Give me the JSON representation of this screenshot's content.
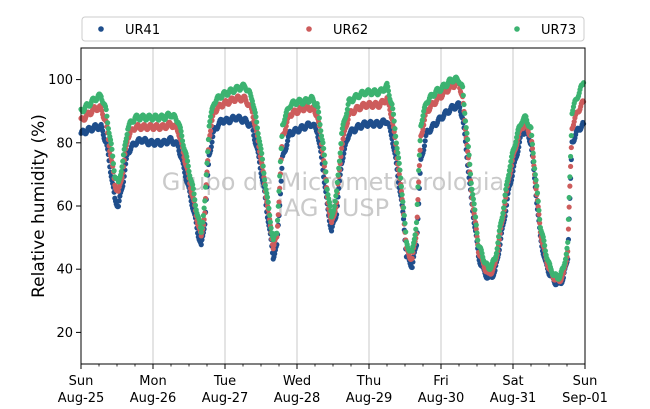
{
  "chart_data": {
    "type": "scatter",
    "ylabel": "Relative humidity (%)",
    "xlabel": "",
    "ylim": [
      10,
      110
    ],
    "yticks": [
      20,
      40,
      60,
      80,
      100
    ],
    "x_range_days": [
      0,
      7
    ],
    "xticks": [
      {
        "day": 0,
        "line1": "Sun",
        "line2": "Aug-25"
      },
      {
        "day": 1,
        "line1": "Mon",
        "line2": "Aug-26"
      },
      {
        "day": 2,
        "line1": "Tue",
        "line2": "Aug-27"
      },
      {
        "day": 3,
        "line1": "Wed",
        "line2": "Aug-28"
      },
      {
        "day": 4,
        "line1": "Thu",
        "line2": "Aug-29"
      },
      {
        "day": 5,
        "line1": "Fri",
        "line2": "Aug-30"
      },
      {
        "day": 6,
        "line1": "Sat",
        "line2": "Aug-31"
      },
      {
        "day": 7,
        "line1": "Sun",
        "line2": "Sep-01"
      }
    ],
    "grid": "vertical",
    "legend_position": "top",
    "watermark": [
      "Grupo de Micrometeorologia",
      "IAG / USP"
    ],
    "series": [
      {
        "name": "UR41",
        "color": "#1f4e8c",
        "points": [
          [
            0.0,
            83
          ],
          [
            0.1,
            84
          ],
          [
            0.2,
            85
          ],
          [
            0.28,
            85
          ],
          [
            0.35,
            80
          ],
          [
            0.42,
            70
          ],
          [
            0.47,
            62
          ],
          [
            0.52,
            60
          ],
          [
            0.58,
            67
          ],
          [
            0.65,
            77
          ],
          [
            0.75,
            80
          ],
          [
            0.85,
            81
          ],
          [
            0.95,
            80
          ],
          [
            1.05,
            80
          ],
          [
            1.15,
            80
          ],
          [
            1.25,
            81
          ],
          [
            1.35,
            79
          ],
          [
            1.45,
            70
          ],
          [
            1.55,
            60
          ],
          [
            1.62,
            52
          ],
          [
            1.67,
            47
          ],
          [
            1.72,
            55
          ],
          [
            1.78,
            76
          ],
          [
            1.85,
            84
          ],
          [
            1.95,
            87
          ],
          [
            2.05,
            87
          ],
          [
            2.15,
            88
          ],
          [
            2.28,
            87
          ],
          [
            2.38,
            85
          ],
          [
            2.48,
            74
          ],
          [
            2.55,
            64
          ],
          [
            2.62,
            52
          ],
          [
            2.67,
            44
          ],
          [
            2.72,
            47
          ],
          [
            2.8,
            75
          ],
          [
            2.9,
            83
          ],
          [
            3.0,
            84
          ],
          [
            3.1,
            85
          ],
          [
            3.2,
            86
          ],
          [
            3.28,
            84
          ],
          [
            3.36,
            72
          ],
          [
            3.42,
            60
          ],
          [
            3.48,
            52
          ],
          [
            3.55,
            58
          ],
          [
            3.62,
            74
          ],
          [
            3.72,
            83
          ],
          [
            3.85,
            85
          ],
          [
            3.95,
            86
          ],
          [
            4.05,
            86
          ],
          [
            4.15,
            86
          ],
          [
            4.25,
            87
          ],
          [
            4.32,
            82
          ],
          [
            4.4,
            70
          ],
          [
            4.48,
            56
          ],
          [
            4.52,
            44
          ],
          [
            4.6,
            41
          ],
          [
            4.66,
            48
          ],
          [
            4.72,
            74
          ],
          [
            4.8,
            83
          ],
          [
            4.92,
            86
          ],
          [
            5.05,
            89
          ],
          [
            5.15,
            91
          ],
          [
            5.25,
            92
          ],
          [
            5.3,
            88
          ],
          [
            5.36,
            76
          ],
          [
            5.42,
            62
          ],
          [
            5.48,
            52
          ],
          [
            5.52,
            44
          ],
          [
            5.58,
            40
          ],
          [
            5.66,
            37
          ],
          [
            5.75,
            39
          ],
          [
            5.85,
            52
          ],
          [
            5.95,
            66
          ],
          [
            6.05,
            76
          ],
          [
            6.12,
            83
          ],
          [
            6.18,
            84
          ],
          [
            6.25,
            80
          ],
          [
            6.32,
            64
          ],
          [
            6.38,
            50
          ],
          [
            6.45,
            42
          ],
          [
            6.52,
            38
          ],
          [
            6.62,
            35
          ],
          [
            6.7,
            37
          ],
          [
            6.76,
            44
          ],
          [
            6.82,
            80
          ],
          [
            6.9,
            84
          ],
          [
            6.98,
            86
          ]
        ]
      },
      {
        "name": "UR62",
        "color": "#cd5c5c",
        "points": [
          [
            0.0,
            87
          ],
          [
            0.1,
            89
          ],
          [
            0.2,
            91
          ],
          [
            0.28,
            91
          ],
          [
            0.35,
            86
          ],
          [
            0.42,
            75
          ],
          [
            0.47,
            67
          ],
          [
            0.52,
            64
          ],
          [
            0.58,
            71
          ],
          [
            0.65,
            82
          ],
          [
            0.75,
            85
          ],
          [
            0.85,
            85
          ],
          [
            0.95,
            85
          ],
          [
            1.05,
            85
          ],
          [
            1.15,
            85
          ],
          [
            1.25,
            86
          ],
          [
            1.35,
            84
          ],
          [
            1.45,
            74
          ],
          [
            1.55,
            63
          ],
          [
            1.62,
            55
          ],
          [
            1.67,
            50
          ],
          [
            1.72,
            58
          ],
          [
            1.78,
            82
          ],
          [
            1.85,
            90
          ],
          [
            1.95,
            92
          ],
          [
            2.05,
            93
          ],
          [
            2.15,
            94
          ],
          [
            2.28,
            94
          ],
          [
            2.38,
            90
          ],
          [
            2.48,
            78
          ],
          [
            2.55,
            67
          ],
          [
            2.62,
            55
          ],
          [
            2.67,
            47
          ],
          [
            2.72,
            50
          ],
          [
            2.8,
            82
          ],
          [
            2.9,
            89
          ],
          [
            3.0,
            90
          ],
          [
            3.1,
            91
          ],
          [
            3.2,
            91
          ],
          [
            3.28,
            89
          ],
          [
            3.36,
            77
          ],
          [
            3.42,
            63
          ],
          [
            3.48,
            54
          ],
          [
            3.55,
            61
          ],
          [
            3.62,
            79
          ],
          [
            3.72,
            89
          ],
          [
            3.85,
            91
          ],
          [
            3.95,
            92
          ],
          [
            4.05,
            92
          ],
          [
            4.15,
            92
          ],
          [
            4.25,
            94
          ],
          [
            4.32,
            88
          ],
          [
            4.4,
            74
          ],
          [
            4.48,
            58
          ],
          [
            4.52,
            46
          ],
          [
            4.6,
            43
          ],
          [
            4.66,
            52
          ],
          [
            4.72,
            82
          ],
          [
            4.8,
            90
          ],
          [
            4.92,
            93
          ],
          [
            5.05,
            96
          ],
          [
            5.15,
            98
          ],
          [
            5.25,
            99
          ],
          [
            5.3,
            94
          ],
          [
            5.36,
            80
          ],
          [
            5.42,
            65
          ],
          [
            5.48,
            54
          ],
          [
            5.52,
            46
          ],
          [
            5.58,
            42
          ],
          [
            5.66,
            38
          ],
          [
            5.75,
            41
          ],
          [
            5.85,
            55
          ],
          [
            5.95,
            70
          ],
          [
            6.05,
            80
          ],
          [
            6.12,
            85
          ],
          [
            6.18,
            86
          ],
          [
            6.25,
            82
          ],
          [
            6.32,
            66
          ],
          [
            6.38,
            52
          ],
          [
            6.45,
            44
          ],
          [
            6.52,
            39
          ],
          [
            6.62,
            36
          ],
          [
            6.7,
            38
          ],
          [
            6.76,
            46
          ],
          [
            6.82,
            85
          ],
          [
            6.9,
            90
          ],
          [
            6.98,
            93
          ]
        ]
      },
      {
        "name": "UR73",
        "color": "#3cb371",
        "points": [
          [
            0.0,
            90
          ],
          [
            0.1,
            92
          ],
          [
            0.2,
            94
          ],
          [
            0.28,
            95
          ],
          [
            0.35,
            90
          ],
          [
            0.42,
            79
          ],
          [
            0.47,
            70
          ],
          [
            0.52,
            67
          ],
          [
            0.58,
            74
          ],
          [
            0.65,
            85
          ],
          [
            0.75,
            88
          ],
          [
            0.85,
            88
          ],
          [
            0.95,
            88
          ],
          [
            1.05,
            88
          ],
          [
            1.15,
            88
          ],
          [
            1.25,
            89
          ],
          [
            1.35,
            87
          ],
          [
            1.45,
            77
          ],
          [
            1.55,
            66
          ],
          [
            1.62,
            57
          ],
          [
            1.67,
            52
          ],
          [
            1.72,
            61
          ],
          [
            1.78,
            86
          ],
          [
            1.85,
            93
          ],
          [
            1.95,
            95
          ],
          [
            2.05,
            96
          ],
          [
            2.15,
            97
          ],
          [
            2.28,
            98
          ],
          [
            2.38,
            94
          ],
          [
            2.48,
            81
          ],
          [
            2.55,
            69
          ],
          [
            2.62,
            57
          ],
          [
            2.67,
            49
          ],
          [
            2.72,
            52
          ],
          [
            2.8,
            86
          ],
          [
            2.9,
            92
          ],
          [
            3.0,
            93
          ],
          [
            3.1,
            93
          ],
          [
            3.2,
            94
          ],
          [
            3.28,
            92
          ],
          [
            3.36,
            80
          ],
          [
            3.42,
            66
          ],
          [
            3.48,
            56
          ],
          [
            3.55,
            64
          ],
          [
            3.62,
            83
          ],
          [
            3.72,
            93
          ],
          [
            3.85,
            95
          ],
          [
            3.95,
            96
          ],
          [
            4.05,
            96
          ],
          [
            4.15,
            96
          ],
          [
            4.25,
            98
          ],
          [
            4.32,
            92
          ],
          [
            4.4,
            77
          ],
          [
            4.48,
            60
          ],
          [
            4.52,
            48
          ],
          [
            4.6,
            45
          ],
          [
            4.66,
            55
          ],
          [
            4.72,
            86
          ],
          [
            4.8,
            93
          ],
          [
            4.92,
            96
          ],
          [
            5.05,
            98
          ],
          [
            5.15,
            100
          ],
          [
            5.25,
            100
          ],
          [
            5.3,
            97
          ],
          [
            5.36,
            83
          ],
          [
            5.42,
            68
          ],
          [
            5.48,
            56
          ],
          [
            5.52,
            48
          ],
          [
            5.58,
            44
          ],
          [
            5.66,
            40
          ],
          [
            5.75,
            43
          ],
          [
            5.85,
            57
          ],
          [
            5.95,
            72
          ],
          [
            6.05,
            82
          ],
          [
            6.12,
            87
          ],
          [
            6.18,
            88
          ],
          [
            6.25,
            84
          ],
          [
            6.32,
            68
          ],
          [
            6.38,
            54
          ],
          [
            6.45,
            46
          ],
          [
            6.52,
            40
          ],
          [
            6.62,
            37
          ],
          [
            6.7,
            40
          ],
          [
            6.76,
            48
          ],
          [
            6.82,
            90
          ],
          [
            6.9,
            95
          ],
          [
            6.98,
            99
          ]
        ]
      }
    ]
  }
}
